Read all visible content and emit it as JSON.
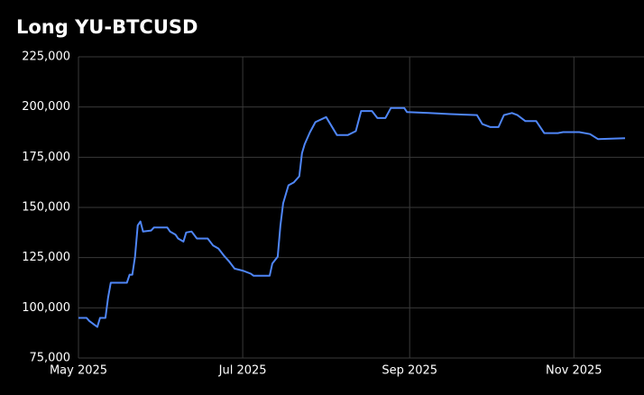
{
  "chart_data": {
    "type": "line",
    "title": "Long YU-BTCUSD",
    "x": [
      0,
      3,
      4,
      6,
      7,
      8,
      10,
      11,
      12,
      18,
      19,
      20,
      21,
      22,
      23,
      24,
      27,
      28,
      33,
      34,
      36,
      37,
      39,
      40,
      42,
      44,
      48,
      50,
      52,
      54,
      56,
      58,
      61,
      64,
      65,
      71,
      72,
      74,
      75,
      76,
      78,
      80,
      82,
      83,
      84,
      86,
      88,
      92,
      94,
      96,
      100,
      103,
      105,
      109,
      111,
      114,
      116,
      121,
      122,
      130,
      138,
      148,
      150,
      153,
      156,
      158,
      161,
      163,
      166,
      170,
      173,
      178,
      180,
      186,
      190,
      193,
      203
    ],
    "series": [
      {
        "name": "Long YU-BTCUSD",
        "color": "#4f86f7",
        "values": [
          95000,
          95000,
          93500,
          91500,
          90500,
          95000,
          95000,
          105000,
          112500,
          112500,
          116500,
          116500,
          125500,
          141000,
          143000,
          138000,
          138500,
          140000,
          140000,
          138000,
          136500,
          134500,
          133000,
          137500,
          138000,
          134500,
          134500,
          131000,
          129500,
          126000,
          123000,
          119500,
          118500,
          117000,
          116000,
          116000,
          122000,
          125500,
          141000,
          152000,
          161000,
          162500,
          165500,
          177000,
          181500,
          187500,
          192500,
          195000,
          190500,
          186000,
          186000,
          188000,
          198000,
          198000,
          194500,
          194500,
          199500,
          199500,
          197500,
          197000,
          196500,
          196000,
          191500,
          190000,
          190000,
          196000,
          197000,
          196000,
          193000,
          193000,
          187000,
          187000,
          187500,
          187500,
          186500,
          184000,
          184500
        ]
      }
    ],
    "xlim": [
      0,
      203
    ],
    "xticks": [
      {
        "value": 0,
        "label": "May 2025"
      },
      {
        "value": 61,
        "label": "Jul 2025"
      },
      {
        "value": 123,
        "label": "Sep 2025"
      },
      {
        "value": 184,
        "label": "Nov 2025"
      }
    ],
    "ylim": [
      75000,
      225000
    ],
    "yticks": [
      {
        "value": 75000,
        "label": "75,000"
      },
      {
        "value": 100000,
        "label": "100,000"
      },
      {
        "value": 125000,
        "label": "125,000"
      },
      {
        "value": 150000,
        "label": "150,000"
      },
      {
        "value": 175000,
        "label": "175,000"
      },
      {
        "value": 200000,
        "label": "200,000"
      },
      {
        "value": 225000,
        "label": "225,000"
      }
    ],
    "grid": true
  }
}
